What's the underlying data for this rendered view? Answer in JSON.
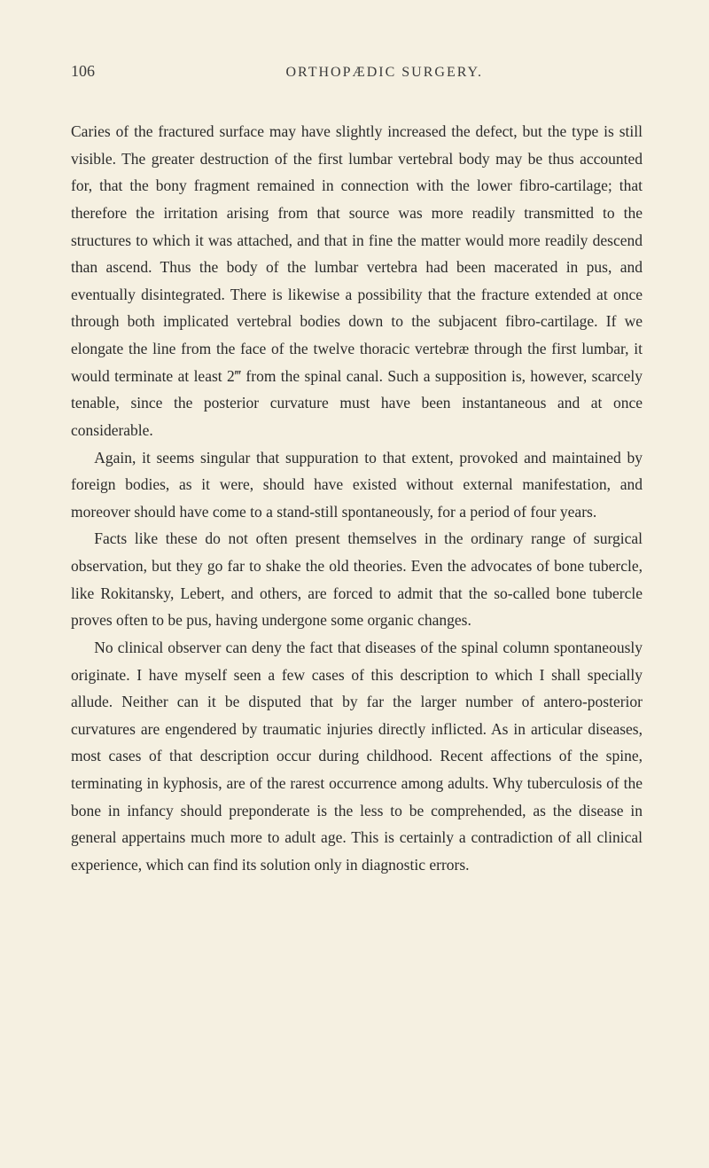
{
  "page": {
    "number": "106",
    "header_title": "ORTHOPÆDIC SURGERY.",
    "background_color": "#f5f0e1",
    "text_color": "#2a2a2a",
    "font_family": "Georgia, 'Times New Roman', serif",
    "body_fontsize": 17.5,
    "line_height": 1.75,
    "header_fontsize": 16,
    "pagenum_fontsize": 18
  },
  "paragraphs": {
    "p1": "Caries of the fractured surface may have slightly increased the defect, but the type is still visible. The greater destruction of the first lumbar vertebral body may be thus accounted for, that the bony fragment remained in connection with the lower fibro-cartilage; that therefore the irritation arising from that source was more readily transmitted to the structures to which it was attached, and that in fine the matter would more readily descend than ascend. Thus the body of the lumbar vertebra had been macerated in pus, and eventually disintegrated. There is likewise a possibility that the fracture extended at once through both implicated vertebral bodies down to the subjacent fibro-cartilage. If we elongate the line from the face of the twelve thoracic vertebræ through the first lumbar, it would terminate at least 2‴ from the spinal canal. Such a supposition is, however, scarcely tenable, since the posterior curvature must have been instantaneous and at once considerable.",
    "p2": "Again, it seems singular that suppuration to that extent, provoked and maintained by foreign bodies, as it were, should have existed without external manifestation, and moreover should have come to a stand-still spontaneously, for a period of four years.",
    "p3": "Facts like these do not often present themselves in the ordinary range of surgical observation, but they go far to shake the old theories. Even the advocates of bone tubercle, like Rokitansky, Lebert, and others, are forced to admit that the so-called bone tubercle proves often to be pus, having undergone some organic changes.",
    "p4": "No clinical observer can deny the fact that diseases of the spinal column spontaneously originate. I have myself seen a few cases of this description to which I shall specially allude. Neither can it be disputed that by far the larger number of antero-posterior curvatures are engendered by traumatic injuries directly inflicted. As in articular diseases, most cases of that description occur during childhood. Recent affections of the spine, terminating in kyphosis, are of the rarest occurrence among adults. Why tuberculosis of the bone in infancy should preponderate is the less to be comprehended, as the disease in general appertains much more to adult age. This is certainly a contradiction of all clinical experience, which can find its solution only in diagnostic errors."
  }
}
